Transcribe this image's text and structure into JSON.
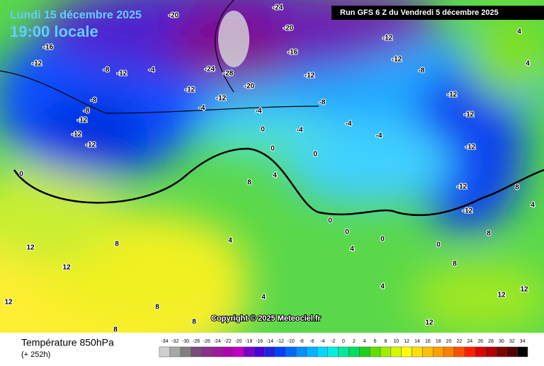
{
  "header": {
    "date": "Lundi 15 décembre 2025",
    "time": "19:00 locale",
    "run": "Run GFS 6 Z du Vendredi 5 décembre 2025"
  },
  "copyright": "Copyright © 2025 Meteociel.fr",
  "footer": {
    "title": "Température 850hPa",
    "lead": "(+ 252h)"
  },
  "legend": {
    "ticks": [
      -34,
      -32,
      -30,
      -28,
      -26,
      -24,
      -22,
      -20,
      -18,
      -16,
      -14,
      -12,
      -10,
      -8,
      -6,
      -4,
      -2,
      0,
      2,
      4,
      6,
      8,
      10,
      12,
      14,
      16,
      18,
      20,
      22,
      24,
      26,
      28,
      30,
      32,
      34
    ],
    "colors": [
      "#d0d0d0",
      "#a8a8a8",
      "#808080",
      "#7a4a7a",
      "#8a2f8a",
      "#9a1a9a",
      "#b000b0",
      "#c000c0",
      "#7a00c8",
      "#4a00d8",
      "#2020e0",
      "#0040ff",
      "#0068ff",
      "#0090ff",
      "#00b4ff",
      "#00d8ff",
      "#00f0e0",
      "#00e8a0",
      "#00e060",
      "#20d020",
      "#60e000",
      "#a0ee00",
      "#d8f800",
      "#ffff00",
      "#ffe000",
      "#ffc000",
      "#ffa000",
      "#ff8000",
      "#ff5000",
      "#ff2000",
      "#e00000",
      "#b00000",
      "#800000",
      "#500000",
      "#000000"
    ]
  },
  "map_labels": [
    -16,
    -12,
    -8,
    -12,
    -4,
    -8,
    -8,
    -12,
    -12,
    -12,
    -20,
    -24,
    -20,
    -16,
    -24,
    -28,
    -20,
    -12,
    -12,
    -4,
    -4,
    0,
    -4,
    -12,
    -12,
    -8,
    -12,
    -8,
    -4,
    -4,
    -12,
    -12,
    -12,
    -12,
    -12,
    4,
    4,
    0,
    0,
    4,
    8,
    4,
    0,
    0,
    4,
    0,
    4,
    8,
    12,
    12,
    12,
    8,
    8,
    4,
    8,
    12,
    12,
    12,
    8,
    0,
    4,
    8,
    0,
    8
  ]
}
